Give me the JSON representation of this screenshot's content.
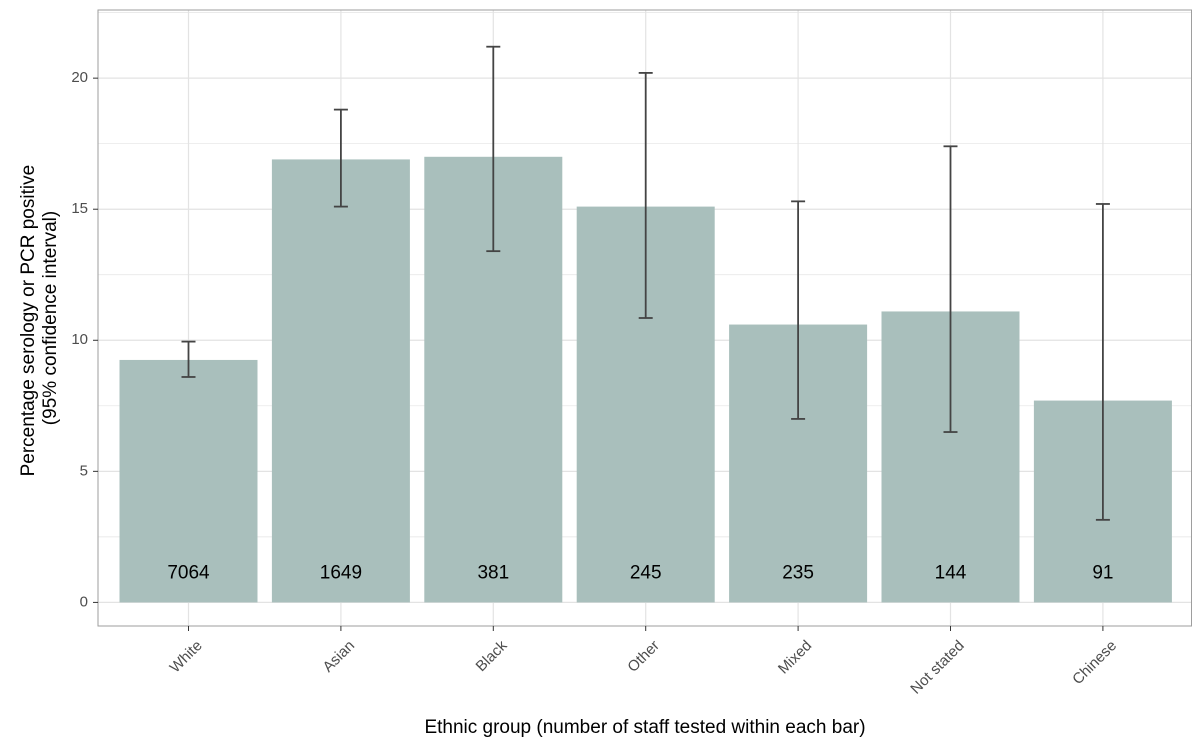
{
  "chart_data": {
    "type": "bar",
    "title": "",
    "xlabel": "Ethnic group (number of staff tested within each bar)",
    "ylabel_lines": [
      "Percentage serology or PCR positive",
      "(95% confidence interval)"
    ],
    "categories": [
      "White",
      "Asian",
      "Black",
      "Other",
      "Mixed",
      "Not stated",
      "Chinese"
    ],
    "values": [
      9.25,
      16.9,
      17.0,
      15.1,
      10.6,
      11.1,
      7.7
    ],
    "ci_lower": [
      8.6,
      15.1,
      13.4,
      10.85,
      7.0,
      6.5,
      3.15
    ],
    "ci_upper": [
      9.95,
      18.8,
      21.2,
      20.2,
      15.3,
      17.4,
      15.2
    ],
    "bar_labels": [
      "7064",
      "1649",
      "381",
      "245",
      "235",
      "144",
      "91"
    ],
    "ylim": [
      -0.9,
      22.6
    ],
    "yticks": [
      0,
      5,
      10,
      15,
      20
    ],
    "ytick_labels": [
      "0",
      "5",
      "10",
      "15",
      "20"
    ],
    "bar_label_y": 1.1,
    "grid": true,
    "legend": "none",
    "colors": {
      "bar": "#a9bfbc",
      "errorbar": "#444444",
      "grid": "#e3e3e3",
      "panel_border": "#9e9e9e"
    }
  }
}
